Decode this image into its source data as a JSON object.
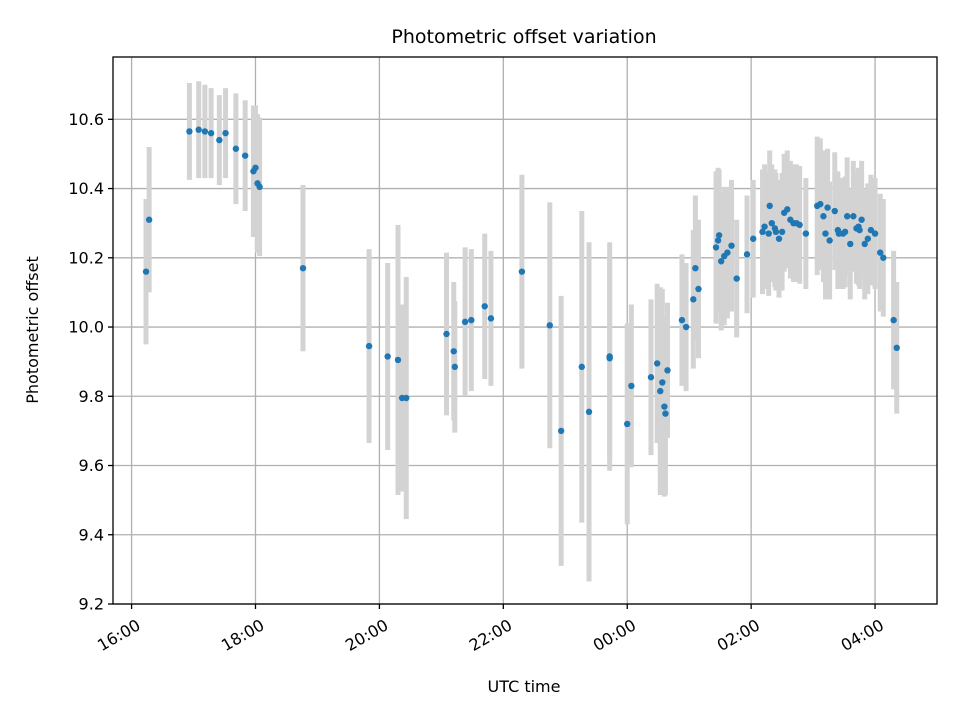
{
  "chart_data": {
    "type": "scatter",
    "title": "Photometric offset variation",
    "xlabel": "UTC time",
    "ylabel": "Photometric offset",
    "x_ticks": [
      "16:00",
      "18:00",
      "20:00",
      "22:00",
      "00:00",
      "02:00",
      "04:00"
    ],
    "y_ticks": [
      "9.2",
      "9.4",
      "9.6",
      "9.8",
      "10.0",
      "10.2",
      "10.4",
      "10.6"
    ],
    "xlim_hours": [
      15.7,
      29.0
    ],
    "ylim": [
      9.2,
      10.78
    ],
    "grid": true,
    "x_tick_label_rotation_deg": 30,
    "colors": {
      "points": "#1f77b4",
      "errorbars": "#d3d3d3"
    },
    "points": [
      {
        "t": "16:14",
        "y": 10.16,
        "e": 0.21
      },
      {
        "t": "16:17",
        "y": 10.31,
        "e": 0.21
      },
      {
        "t": "16:56",
        "y": 10.565,
        "e": 0.14
      },
      {
        "t": "17:05",
        "y": 10.57,
        "e": 0.14
      },
      {
        "t": "17:11",
        "y": 10.565,
        "e": 0.135
      },
      {
        "t": "17:17",
        "y": 10.56,
        "e": 0.13
      },
      {
        "t": "17:25",
        "y": 10.54,
        "e": 0.13
      },
      {
        "t": "17:31",
        "y": 10.56,
        "e": 0.13
      },
      {
        "t": "17:41",
        "y": 10.515,
        "e": 0.16
      },
      {
        "t": "17:50",
        "y": 10.495,
        "e": 0.16
      },
      {
        "t": "17:58",
        "y": 10.45,
        "e": 0.19
      },
      {
        "t": "18:00",
        "y": 10.46,
        "e": 0.18
      },
      {
        "t": "18:02",
        "y": 10.415,
        "e": 0.2
      },
      {
        "t": "18:04",
        "y": 10.405,
        "e": 0.2
      },
      {
        "t": "18:46",
        "y": 10.17,
        "e": 0.24
      },
      {
        "t": "19:50",
        "y": 9.945,
        "e": 0.28
      },
      {
        "t": "20:08",
        "y": 9.915,
        "e": 0.27
      },
      {
        "t": "20:18",
        "y": 9.905,
        "e": 0.39
      },
      {
        "t": "20:22",
        "y": 9.795,
        "e": 0.27
      },
      {
        "t": "20:26",
        "y": 9.795,
        "e": 0.35
      },
      {
        "t": "21:05",
        "y": 9.98,
        "e": 0.235
      },
      {
        "t": "21:12",
        "y": 9.93,
        "e": 0.2
      },
      {
        "t": "21:13",
        "y": 9.885,
        "e": 0.19
      },
      {
        "t": "21:23",
        "y": 10.015,
        "e": 0.215
      },
      {
        "t": "21:29",
        "y": 10.02,
        "e": 0.205
      },
      {
        "t": "21:42",
        "y": 10.06,
        "e": 0.21
      },
      {
        "t": "21:48",
        "y": 10.025,
        "e": 0.195
      },
      {
        "t": "22:18",
        "y": 10.16,
        "e": 0.28
      },
      {
        "t": "22:45",
        "y": 10.005,
        "e": 0.355
      },
      {
        "t": "22:56",
        "y": 9.7,
        "e": 0.39
      },
      {
        "t": "23:16",
        "y": 9.885,
        "e": 0.45
      },
      {
        "t": "23:23",
        "y": 9.755,
        "e": 0.49
      },
      {
        "t": "23:43",
        "y": 9.915,
        "e": 0.33
      },
      {
        "t": "23:43",
        "y": 9.91,
        "e": 0.29
      },
      {
        "t": "00:00",
        "y": 9.72,
        "e": 0.29
      },
      {
        "t": "00:04",
        "y": 9.83,
        "e": 0.235
      },
      {
        "t": "00:23",
        "y": 9.855,
        "e": 0.225
      },
      {
        "t": "00:29",
        "y": 9.895,
        "e": 0.23
      },
      {
        "t": "00:32",
        "y": 9.815,
        "e": 0.3
      },
      {
        "t": "00:34",
        "y": 9.84,
        "e": 0.27
      },
      {
        "t": "00:36",
        "y": 9.77,
        "e": 0.26
      },
      {
        "t": "00:37",
        "y": 9.75,
        "e": 0.235
      },
      {
        "t": "00:39",
        "y": 9.875,
        "e": 0.195
      },
      {
        "t": "00:53",
        "y": 10.02,
        "e": 0.19
      },
      {
        "t": "00:57",
        "y": 10.0,
        "e": 0.185
      },
      {
        "t": "01:04",
        "y": 10.08,
        "e": 0.2
      },
      {
        "t": "01:06",
        "y": 10.17,
        "e": 0.21
      },
      {
        "t": "01:09",
        "y": 10.11,
        "e": 0.2
      },
      {
        "t": "01:26",
        "y": 10.23,
        "e": 0.22
      },
      {
        "t": "01:28",
        "y": 10.25,
        "e": 0.21
      },
      {
        "t": "01:29",
        "y": 10.265,
        "e": 0.19
      },
      {
        "t": "01:31",
        "y": 10.19,
        "e": 0.2
      },
      {
        "t": "01:34",
        "y": 10.205,
        "e": 0.2
      },
      {
        "t": "01:37",
        "y": 10.215,
        "e": 0.19
      },
      {
        "t": "01:41",
        "y": 10.235,
        "e": 0.19
      },
      {
        "t": "01:46",
        "y": 10.14,
        "e": 0.17
      },
      {
        "t": "01:56",
        "y": 10.21,
        "e": 0.17
      },
      {
        "t": "02:02",
        "y": 10.255,
        "e": 0.17
      },
      {
        "t": "02:11",
        "y": 10.275,
        "e": 0.18
      },
      {
        "t": "02:13",
        "y": 10.29,
        "e": 0.18
      },
      {
        "t": "02:17",
        "y": 10.27,
        "e": 0.18
      },
      {
        "t": "02:18",
        "y": 10.35,
        "e": 0.16
      },
      {
        "t": "02:20",
        "y": 10.3,
        "e": 0.17
      },
      {
        "t": "02:23",
        "y": 10.285,
        "e": 0.17
      },
      {
        "t": "02:24",
        "y": 10.275,
        "e": 0.17
      },
      {
        "t": "02:27",
        "y": 10.255,
        "e": 0.17
      },
      {
        "t": "02:30",
        "y": 10.275,
        "e": 0.17
      },
      {
        "t": "02:32",
        "y": 10.33,
        "e": 0.17
      },
      {
        "t": "02:35",
        "y": 10.34,
        "e": 0.17
      },
      {
        "t": "02:38",
        "y": 10.31,
        "e": 0.17
      },
      {
        "t": "02:41",
        "y": 10.3,
        "e": 0.17
      },
      {
        "t": "02:44",
        "y": 10.3,
        "e": 0.17
      },
      {
        "t": "02:47",
        "y": 10.295,
        "e": 0.17
      },
      {
        "t": "02:53",
        "y": 10.27,
        "e": 0.16
      },
      {
        "t": "03:04",
        "y": 10.35,
        "e": 0.2
      },
      {
        "t": "03:07",
        "y": 10.355,
        "e": 0.19
      },
      {
        "t": "03:10",
        "y": 10.32,
        "e": 0.19
      },
      {
        "t": "03:12",
        "y": 10.27,
        "e": 0.19
      },
      {
        "t": "03:14",
        "y": 10.345,
        "e": 0.17
      },
      {
        "t": "03:16",
        "y": 10.25,
        "e": 0.17
      },
      {
        "t": "03:21",
        "y": 10.335,
        "e": 0.17
      },
      {
        "t": "03:24",
        "y": 10.28,
        "e": 0.17
      },
      {
        "t": "03:25",
        "y": 10.27,
        "e": 0.16
      },
      {
        "t": "03:29",
        "y": 10.27,
        "e": 0.16
      },
      {
        "t": "03:31",
        "y": 10.275,
        "e": 0.16
      },
      {
        "t": "03:33",
        "y": 10.32,
        "e": 0.17
      },
      {
        "t": "03:36",
        "y": 10.24,
        "e": 0.16
      },
      {
        "t": "03:39",
        "y": 10.32,
        "e": 0.16
      },
      {
        "t": "03:42",
        "y": 10.285,
        "e": 0.16
      },
      {
        "t": "03:44",
        "y": 10.29,
        "e": 0.17
      },
      {
        "t": "03:45",
        "y": 10.28,
        "e": 0.17
      },
      {
        "t": "03:47",
        "y": 10.31,
        "e": 0.17
      },
      {
        "t": "03:50",
        "y": 10.24,
        "e": 0.16
      },
      {
        "t": "03:53",
        "y": 10.255,
        "e": 0.16
      },
      {
        "t": "03:56",
        "y": 10.28,
        "e": 0.16
      },
      {
        "t": "04:00",
        "y": 10.27,
        "e": 0.16
      },
      {
        "t": "04:05",
        "y": 10.215,
        "e": 0.17
      },
      {
        "t": "04:08",
        "y": 10.2,
        "e": 0.17
      },
      {
        "t": "04:18",
        "y": 10.02,
        "e": 0.2
      },
      {
        "t": "04:21",
        "y": 9.94,
        "e": 0.19
      }
    ]
  }
}
